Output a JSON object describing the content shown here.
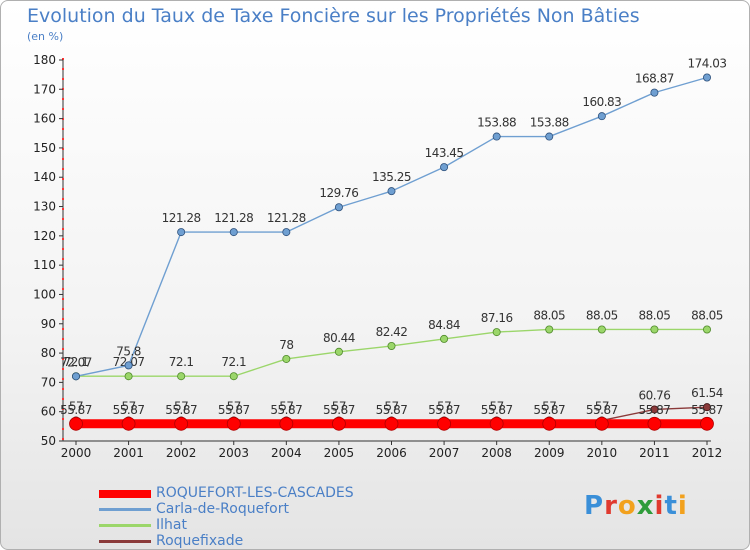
{
  "header": {
    "title": "Evolution du Taux de Taxe Foncière sur les Propriétés Non Bâties",
    "unit": "(en %)"
  },
  "logo": {
    "text": "Proxiti",
    "letters": [
      "P",
      "r",
      "o",
      "x",
      "i",
      "t",
      "i"
    ],
    "colors": [
      "#3a8fd8",
      "#e03a2f",
      "#f2a11d",
      "#2e9c3a",
      "#e03a2f",
      "#3a8fd8",
      "#f2a11d"
    ]
  },
  "chart_data": {
    "type": "line",
    "title": "Evolution du Taux de Taxe Foncière sur les Propriétés Non Bâties",
    "ylabel": "(en %)",
    "xlabel": "",
    "x": [
      "2000",
      "2001",
      "2002",
      "2003",
      "2004",
      "2005",
      "2006",
      "2007",
      "2008",
      "2009",
      "2010",
      "2011",
      "2012"
    ],
    "ylim": [
      50,
      180
    ],
    "yticks": [
      50,
      60,
      70,
      80,
      90,
      100,
      110,
      120,
      130,
      140,
      150,
      160,
      170,
      180
    ],
    "grid": false,
    "legend_position": "bottom-left",
    "series": [
      {
        "name": "ROQUEFORT-LES-CASCADES",
        "color": "#ff0000",
        "values": [
          55.87,
          55.87,
          55.87,
          55.87,
          55.87,
          55.87,
          55.87,
          55.87,
          55.87,
          55.87,
          55.87,
          55.87,
          55.87
        ],
        "labels": [
          "55.87",
          "55.87",
          "55.87",
          "55.87",
          "55.87",
          "55.87",
          "55.87",
          "55.87",
          "55.87",
          "55.87",
          "55.87",
          "55.87",
          "55.87"
        ]
      },
      {
        "name": "Carla-de-Roquefort",
        "color": "#6f9fd1",
        "values": [
          72.07,
          75.8,
          121.28,
          121.28,
          121.28,
          129.76,
          135.25,
          143.45,
          153.88,
          153.88,
          160.83,
          168.87,
          174.03
        ],
        "labels": [
          "72.07",
          "75.8",
          "121.28",
          "121.28",
          "121.28",
          "129.76",
          "135.25",
          "143.45",
          "153.88",
          "153.88",
          "160.83",
          "168.87",
          "174.03"
        ]
      },
      {
        "name": "Ilhat",
        "color": "#9bd66a",
        "values": [
          72.1,
          72.1,
          72.1,
          72.1,
          78,
          80.44,
          82.42,
          84.84,
          87.16,
          88.05,
          88.05,
          88.05,
          88.05
        ],
        "labels": [
          "72.1",
          "72.07",
          "72.1",
          "72.1",
          "78",
          "80.44",
          "82.42",
          "84.84",
          "87.16",
          "88.05",
          "88.05",
          "88.05",
          "88.05"
        ]
      },
      {
        "name": "Roquefixade",
        "color": "#8b3a3a",
        "values": [
          57,
          57,
          57,
          57,
          57,
          57,
          57,
          57,
          57,
          57,
          57,
          60.76,
          61.54
        ],
        "labels": [
          "57",
          "57",
          "57",
          "57",
          "57",
          "57",
          "57",
          "57",
          "57",
          "57",
          "57",
          "60.76",
          "61.54"
        ]
      }
    ]
  }
}
